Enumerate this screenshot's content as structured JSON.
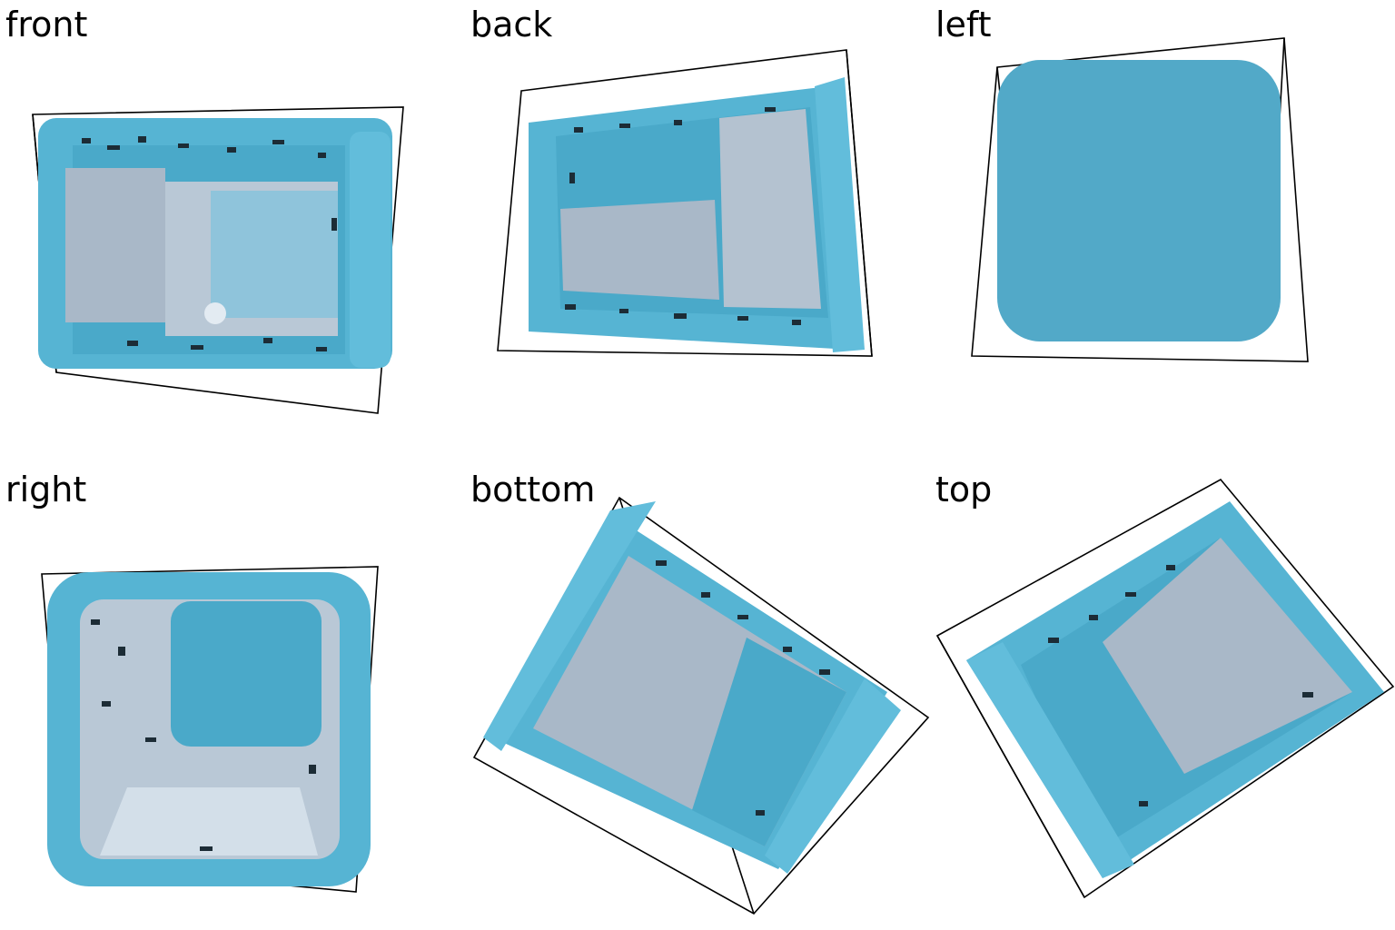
{
  "views": [
    {
      "label": "front"
    },
    {
      "label": "back"
    },
    {
      "label": "left"
    },
    {
      "label": "right"
    },
    {
      "label": "bottom"
    },
    {
      "label": "top"
    }
  ],
  "colors": {
    "object_blue": "#56b4d3",
    "object_blue_dark": "#3e9fc2",
    "inner_gray": "#a9b8c8",
    "inner_light": "#c9d6e2",
    "outline": "#000000",
    "background": "#ffffff"
  }
}
